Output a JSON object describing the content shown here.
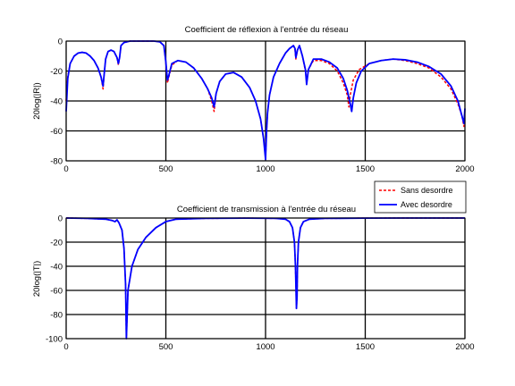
{
  "colors": {
    "sans_desordre": "#ff0000",
    "avec_desordre": "#0000ff",
    "grid": "#000000",
    "axes": "#000000"
  },
  "legend": {
    "placement": "between panels, right",
    "entries": [
      "Sans desordre",
      "Avec desordre"
    ]
  },
  "chart_data": [
    {
      "type": "line",
      "title": "Coefficient de réflexion à l'entrée du réseau",
      "xlabel": "",
      "ylabel": "20log(|R|)",
      "xlim": [
        0,
        2000
      ],
      "ylim": [
        -80,
        0
      ],
      "xticks": [
        0,
        500,
        1000,
        1500,
        2000
      ],
      "yticks": [
        0,
        -20,
        -40,
        -60,
        -80
      ],
      "grid": true,
      "series": [
        {
          "name": "Sans desordre",
          "style": "dashed",
          "color": "#ff0000",
          "x": [
            0,
            8,
            20,
            40,
            60,
            80,
            100,
            120,
            140,
            160,
            175,
            185,
            190,
            198,
            210,
            225,
            240,
            255,
            262,
            268,
            275,
            290,
            320,
            360,
            400,
            440,
            470,
            490,
            500,
            508,
            515,
            530,
            560,
            600,
            640,
            680,
            710,
            730,
            742,
            752,
            770,
            800,
            840,
            880,
            920,
            950,
            975,
            990,
            1000,
            1005,
            1010,
            1020,
            1040,
            1070,
            1100,
            1120,
            1140,
            1148,
            1152,
            1160,
            1170,
            1185,
            1200,
            1206,
            1215,
            1240,
            1280,
            1320,
            1360,
            1390,
            1410,
            1418,
            1425,
            1440,
            1470,
            1520,
            1580,
            1640,
            1700,
            1760,
            1820,
            1880,
            1930,
            1965,
            1985,
            1995,
            2000
          ],
          "y": [
            -40,
            -24,
            -15,
            -10,
            -8,
            -7.5,
            -8,
            -10,
            -13,
            -18,
            -24,
            -32,
            -23,
            -12,
            -7,
            -6,
            -7,
            -11,
            -16,
            -11,
            -3,
            -1,
            0,
            0,
            0,
            0,
            -0.5,
            -3,
            -14,
            -28,
            -24,
            -16,
            -13,
            -14,
            -18,
            -25,
            -32,
            -40,
            -47,
            -35,
            -27,
            -22,
            -21,
            -24,
            -31,
            -40,
            -52,
            -65,
            -78,
            -60,
            -48,
            -36,
            -24,
            -15,
            -8,
            -5,
            -3,
            -6,
            -12,
            -6,
            -3,
            -10,
            -20,
            -27,
            -19,
            -13,
            -13,
            -15,
            -20,
            -28,
            -36,
            -44,
            -36,
            -26,
            -19,
            -15,
            -13,
            -12,
            -13,
            -15,
            -18,
            -24,
            -32,
            -42,
            -50,
            -57,
            -52
          ]
        },
        {
          "name": "Avec desordre",
          "style": "solid",
          "color": "#0000ff",
          "x": [
            0,
            8,
            20,
            40,
            60,
            80,
            100,
            120,
            140,
            160,
            175,
            185,
            190,
            198,
            210,
            225,
            240,
            255,
            262,
            268,
            275,
            290,
            320,
            360,
            400,
            440,
            470,
            490,
            500,
            508,
            515,
            530,
            560,
            600,
            640,
            680,
            710,
            730,
            742,
            752,
            770,
            800,
            840,
            880,
            920,
            950,
            975,
            990,
            1000,
            1005,
            1010,
            1020,
            1040,
            1070,
            1100,
            1120,
            1140,
            1148,
            1152,
            1160,
            1170,
            1185,
            1200,
            1206,
            1215,
            1240,
            1280,
            1320,
            1360,
            1390,
            1410,
            1425,
            1432,
            1440,
            1455,
            1480,
            1520,
            1580,
            1640,
            1700,
            1760,
            1820,
            1880,
            1930,
            1965,
            1985,
            1995,
            2000
          ],
          "y": [
            -47,
            -25,
            -15,
            -10,
            -8,
            -7.5,
            -8,
            -10,
            -13,
            -18,
            -24,
            -30,
            -23,
            -12,
            -7,
            -6,
            -7,
            -11,
            -15,
            -11,
            -3,
            -1,
            0,
            0,
            0,
            0,
            -0.5,
            -3,
            -14,
            -26,
            -23,
            -15,
            -13,
            -14,
            -18,
            -25,
            -32,
            -38,
            -44,
            -35,
            -27,
            -22,
            -21,
            -24,
            -31,
            -40,
            -52,
            -65,
            -79,
            -60,
            -48,
            -36,
            -24,
            -15,
            -8,
            -5,
            -3,
            -5,
            -11,
            -6,
            -3,
            -10,
            -19,
            -29,
            -19,
            -12,
            -12,
            -14,
            -18,
            -25,
            -33,
            -42,
            -47,
            -38,
            -28,
            -20,
            -15,
            -13,
            -12,
            -12.5,
            -14,
            -17,
            -22,
            -30,
            -40,
            -50,
            -55,
            -45
          ]
        }
      ]
    },
    {
      "type": "line",
      "title": "Coefficient de transmission à l'entrée du réseau",
      "xlabel": "",
      "ylabel": "20log(|T|)",
      "xlim": [
        0,
        2000
      ],
      "ylim": [
        -100,
        0
      ],
      "xticks": [
        0,
        500,
        1000,
        1500,
        2000
      ],
      "yticks": [
        0,
        -20,
        -40,
        -60,
        -80,
        -100
      ],
      "grid": true,
      "series": [
        {
          "name": "Sans desordre",
          "style": "dashed",
          "color": "#ff0000",
          "x": [
            0,
            100,
            200,
            230,
            245,
            255,
            265,
            280,
            290,
            298,
            302,
            310,
            330,
            360,
            400,
            450,
            500,
            550,
            700,
            900,
            1050,
            1100,
            1120,
            1135,
            1145,
            1150,
            1155,
            1158,
            1160,
            1165,
            1175,
            1190,
            1220,
            1300,
            1500,
            1700,
            2000
          ],
          "y": [
            0,
            -0.3,
            -1,
            -2,
            -3,
            -1.5,
            -4,
            -10,
            -25,
            -55,
            -100,
            -60,
            -40,
            -26,
            -16,
            -8,
            -3,
            -1,
            -0.3,
            -0.1,
            -0.3,
            -1,
            -3,
            -8,
            -20,
            -40,
            -75,
            -65,
            -40,
            -20,
            -8,
            -3,
            -1,
            -0.3,
            -0.1,
            0,
            0
          ]
        },
        {
          "name": "Avec desordre",
          "style": "solid",
          "color": "#0000ff",
          "x": [
            0,
            100,
            200,
            230,
            245,
            255,
            265,
            280,
            290,
            298,
            302,
            310,
            330,
            360,
            400,
            450,
            500,
            550,
            700,
            900,
            1050,
            1100,
            1120,
            1135,
            1145,
            1150,
            1155,
            1158,
            1160,
            1165,
            1175,
            1190,
            1220,
            1300,
            1500,
            1700,
            2000
          ],
          "y": [
            0,
            -0.3,
            -1,
            -2,
            -3,
            -1.5,
            -4,
            -10,
            -25,
            -55,
            -100,
            -60,
            -40,
            -26,
            -16,
            -8,
            -3,
            -1,
            -0.3,
            -0.1,
            -0.3,
            -1,
            -3,
            -8,
            -20,
            -40,
            -75,
            -65,
            -40,
            -20,
            -8,
            -3,
            -1,
            -0.3,
            -0.1,
            0,
            0
          ]
        }
      ]
    }
  ]
}
